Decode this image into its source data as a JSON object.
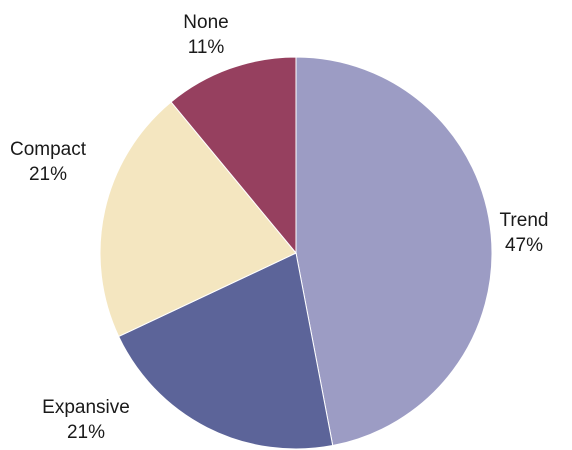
{
  "chart_data": {
    "type": "pie",
    "title": "",
    "start_angle_deg": 0,
    "direction": "clockwise",
    "slices": [
      {
        "name": "Trend",
        "value": 47,
        "label": "Trend",
        "pct_label": "47%",
        "color": "#9c9cc4"
      },
      {
        "name": "Expansive",
        "value": 21,
        "label": "Expansive",
        "pct_label": "21%",
        "color": "#5c6499"
      },
      {
        "name": "Compact",
        "value": 21,
        "label": "Compact",
        "pct_label": "21%",
        "color": "#f4e6c0"
      },
      {
        "name": "None",
        "value": 11,
        "label": "None",
        "pct_label": "11%",
        "color": "#96405f"
      }
    ]
  }
}
